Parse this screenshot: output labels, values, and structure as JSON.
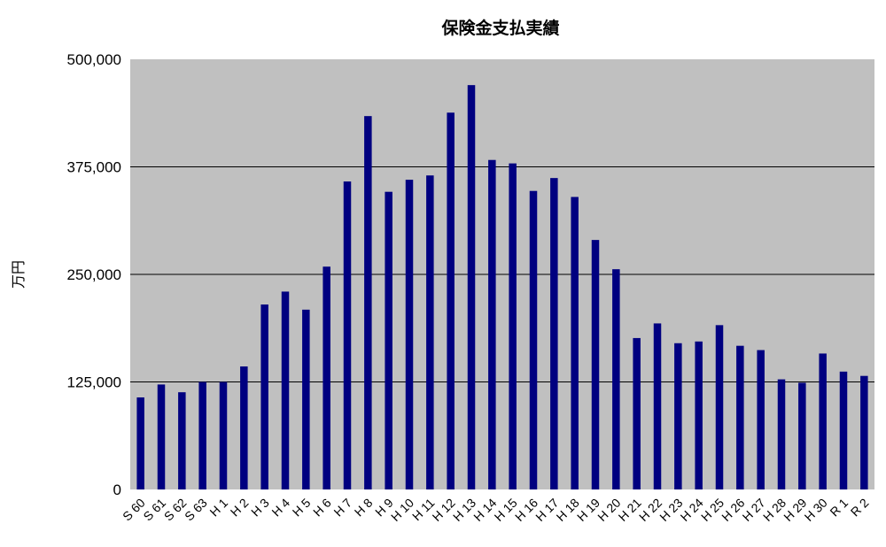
{
  "chart_data": {
    "type": "bar",
    "title": "保険金支払実績",
    "xlabel": "",
    "ylabel": "万円",
    "ylim": [
      0,
      500000
    ],
    "yticks": [
      "0",
      "125,000",
      "250,000",
      "375,000",
      "500,000"
    ],
    "ytick_values": [
      0,
      125000,
      250000,
      375000,
      500000
    ],
    "grid": true,
    "legend": "none",
    "categories": [
      "S60",
      "S61",
      "S62",
      "S63",
      "H1",
      "H2",
      "H3",
      "H4",
      "H5",
      "H6",
      "H7",
      "H8",
      "H9",
      "H10",
      "H11",
      "H12",
      "H13",
      "H14",
      "H15",
      "H16",
      "H17",
      "H18",
      "H19",
      "H20",
      "H21",
      "H22",
      "H23",
      "H24",
      "H25",
      "H26",
      "H27",
      "H28",
      "H29",
      "H30",
      "R1",
      "R2"
    ],
    "category_labels": [
      "S 60",
      "S 61",
      "S 62",
      "S 63",
      "H 1",
      "H 2",
      "H 3",
      "H 4",
      "H 5",
      "H 6",
      "H 7",
      "H 8",
      "H 9",
      "H 10",
      "H 11",
      "H 12",
      "H 13",
      "H 14",
      "H 15",
      "H 16",
      "H 17",
      "H 18",
      "H 19",
      "H 20",
      "H 21",
      "H 22",
      "H 23",
      "H 24",
      "H 25",
      "H 26",
      "H 27",
      "H 28",
      "H 29",
      "H 30",
      "R 1",
      "R 2"
    ],
    "values": [
      107000,
      122000,
      113000,
      125000,
      125000,
      143000,
      215000,
      230000,
      209000,
      259000,
      358000,
      434000,
      346000,
      360000,
      365000,
      438000,
      470000,
      383000,
      379000,
      347000,
      362000,
      340000,
      290000,
      256000,
      176000,
      193000,
      170000,
      172000,
      191000,
      167000,
      162000,
      128000,
      124000,
      158000,
      137000,
      132000
    ],
    "colors": {
      "bar": "#000080",
      "plot_background": "#c0c0c0",
      "grid": "#000000"
    }
  }
}
